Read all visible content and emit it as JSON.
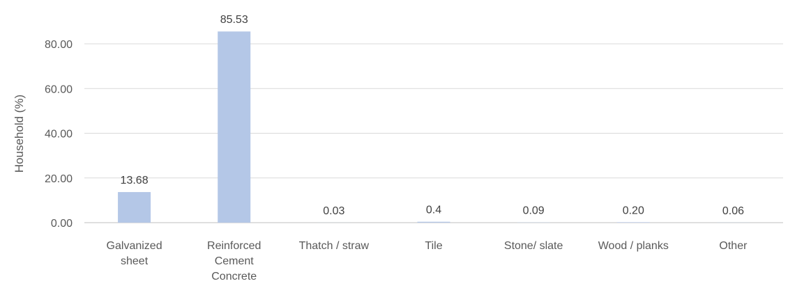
{
  "chart_data": {
    "type": "bar",
    "title": "",
    "xlabel": "",
    "ylabel": "Household (%)",
    "ylim": [
      0,
      90
    ],
    "yticks": [
      0,
      20,
      40,
      60,
      80
    ],
    "ytick_labels": [
      "0.00",
      "20.00",
      "40.00",
      "60.00",
      "80.00"
    ],
    "grid": true,
    "legend": "none",
    "bar_color": "#b4c7e7",
    "categories": [
      [
        "Galvanized",
        "sheet"
      ],
      [
        "Reinforced",
        "Cement",
        "Concrete"
      ],
      [
        "Thatch / straw"
      ],
      [
        "Tile"
      ],
      [
        "Stone/ slate"
      ],
      [
        "Wood / planks"
      ],
      [
        "Other"
      ]
    ],
    "values": [
      13.68,
      85.53,
      0.03,
      0.4,
      0.09,
      0.2,
      0.06
    ],
    "data_labels": [
      "13.68",
      "85.53",
      "0.03",
      "0.4",
      "0.09",
      "0.20",
      "0.06"
    ]
  }
}
